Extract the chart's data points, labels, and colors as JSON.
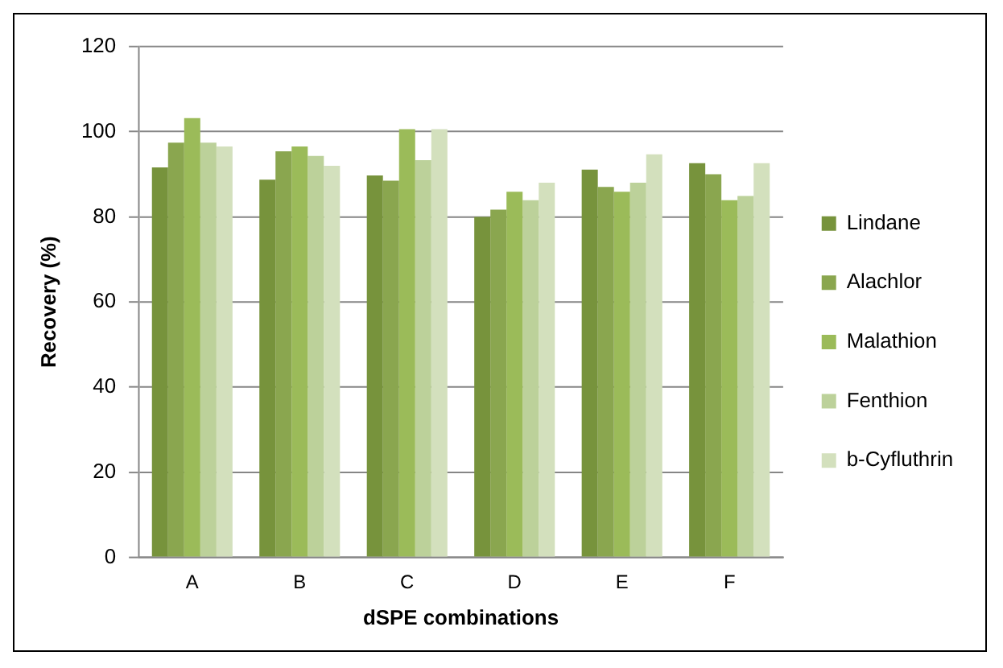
{
  "chart_data": {
    "type": "bar",
    "xlabel": "dSPE combinations",
    "ylabel": "Recovery (%)",
    "categories": [
      "A",
      "B",
      "C",
      "D",
      "E",
      "F"
    ],
    "series": [
      {
        "name": "Lindane",
        "color": "#77933c",
        "values": [
          91.6,
          88.7,
          89.7,
          80,
          91.1,
          92.6
        ]
      },
      {
        "name": "Alachlor",
        "color": "#8aa64f",
        "values": [
          97.4,
          95.4,
          88.5,
          81.7,
          87,
          90
        ]
      },
      {
        "name": "Malathion",
        "color": "#9bbb59",
        "values": [
          103.2,
          96.5,
          100.6,
          85.9,
          85.9,
          83.9
        ]
      },
      {
        "name": "Fenthion",
        "color": "#bcd19a",
        "values": [
          97.4,
          94.3,
          93.3,
          83.9,
          88,
          84.9
        ]
      },
      {
        "name": "b-Cyfluthrin",
        "color": "#d3e0bd",
        "values": [
          96.5,
          92,
          100.6,
          88,
          94.7,
          92.6
        ]
      }
    ],
    "ylim": [
      0,
      120
    ],
    "yticks": [
      0,
      20,
      40,
      60,
      80,
      100,
      120
    ],
    "grid": "y",
    "legend": "right"
  }
}
